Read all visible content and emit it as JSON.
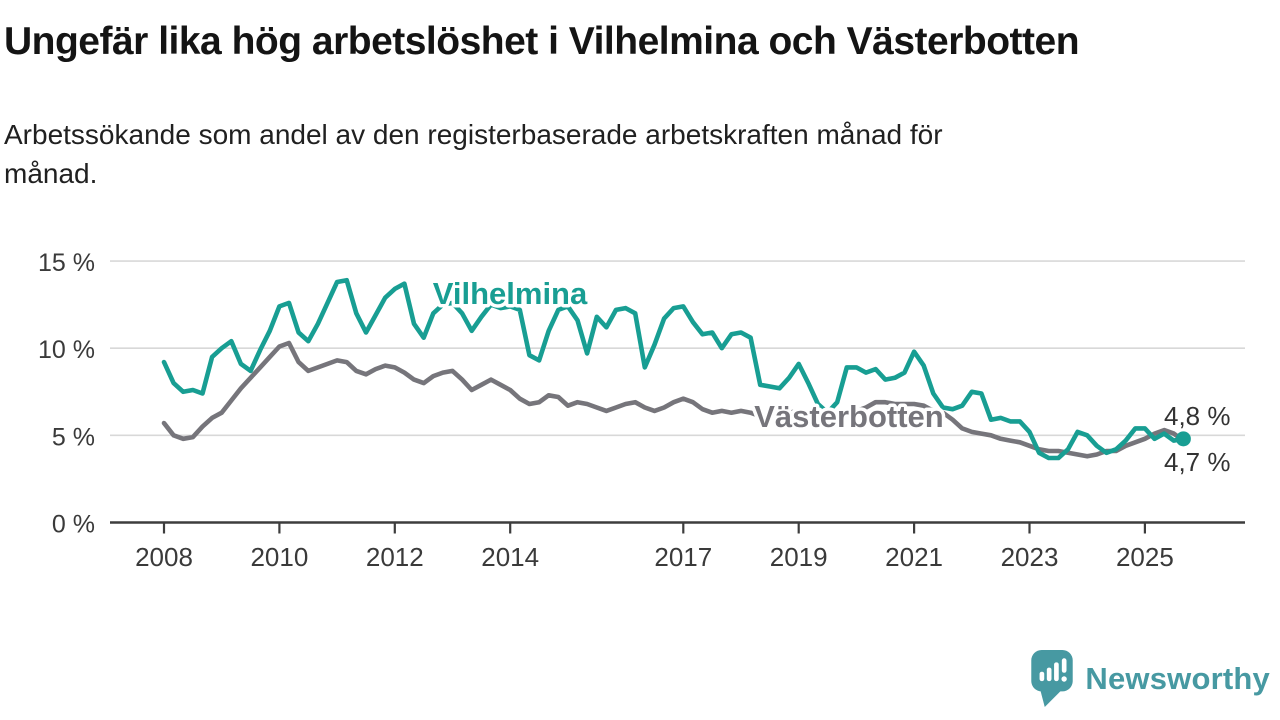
{
  "chart_data": {
    "type": "line",
    "title": "Ungefär lika hög arbetslöshet i Vilhelmina och Västerbotten",
    "subtitle_lines": [
      "Arbetssökande som andel av den registerbaserade arbetskraften månad för",
      "månad."
    ],
    "x_unit": "months (sampled every 2 months)",
    "x_start": 2008.0,
    "x_step_years": 0.1666667,
    "x_ticks": [
      2008,
      2010,
      2012,
      2014,
      2017,
      2019,
      2021,
      2023,
      2025
    ],
    "y_ticks": [
      0,
      5,
      10,
      15
    ],
    "y_tick_suffix": " %",
    "ylim": [
      0,
      16.5
    ],
    "xlim": [
      2007.1,
      2026.7
    ],
    "grid": "horizontal",
    "legend": "inline-labels",
    "axis_color": "#3d3d3d",
    "grid_color": "#d8d8d8",
    "end_label_color": "#333333",
    "series": [
      {
        "name": "Vilhelmina",
        "color": "#189e93",
        "end_label": "4,8 %",
        "end_dot": true,
        "values": [
          9.2,
          8.0,
          7.5,
          7.6,
          7.4,
          9.5,
          10.0,
          10.4,
          9.1,
          8.7,
          9.9,
          11.0,
          12.4,
          12.6,
          10.9,
          10.4,
          11.4,
          12.6,
          13.8,
          13.9,
          12.0,
          10.9,
          11.9,
          12.9,
          13.4,
          13.7,
          11.4,
          10.6,
          12.0,
          12.5,
          12.6,
          12.0,
          11.0,
          11.8,
          12.5,
          12.3,
          12.4,
          12.2,
          9.6,
          9.3,
          11.0,
          12.2,
          12.4,
          11.6,
          9.7,
          11.8,
          11.2,
          12.2,
          12.3,
          12.0,
          8.9,
          10.2,
          11.7,
          12.3,
          12.4,
          11.5,
          10.8,
          10.9,
          10.0,
          10.8,
          10.9,
          10.6,
          7.9,
          7.8,
          7.7,
          8.3,
          9.1,
          8.0,
          6.8,
          6.3,
          6.9,
          8.9,
          8.9,
          8.6,
          8.8,
          8.2,
          8.3,
          8.6,
          9.8,
          9.0,
          7.4,
          6.6,
          6.5,
          6.7,
          7.5,
          7.4,
          5.9,
          6.0,
          5.8,
          5.8,
          5.2,
          4.0,
          3.7,
          3.7,
          4.2,
          5.2,
          5.0,
          4.4,
          4.0,
          4.2,
          4.7,
          5.4,
          5.4,
          4.8,
          5.1,
          4.7,
          4.8
        ]
      },
      {
        "name": "Västerbotten",
        "color": "#76757b",
        "end_label": "4,7 %",
        "end_dot": false,
        "values": [
          5.7,
          5.0,
          4.8,
          4.9,
          5.5,
          6.0,
          6.3,
          7.0,
          7.7,
          8.3,
          8.9,
          9.5,
          10.1,
          10.3,
          9.2,
          8.7,
          8.9,
          9.1,
          9.3,
          9.2,
          8.7,
          8.5,
          8.8,
          9.0,
          8.9,
          8.6,
          8.2,
          8.0,
          8.4,
          8.6,
          8.7,
          8.2,
          7.6,
          7.9,
          8.2,
          7.9,
          7.6,
          7.1,
          6.8,
          6.9,
          7.3,
          7.2,
          6.7,
          6.9,
          6.8,
          6.6,
          6.4,
          6.6,
          6.8,
          6.9,
          6.6,
          6.4,
          6.6,
          6.9,
          7.1,
          6.9,
          6.5,
          6.3,
          6.4,
          6.3,
          6.4,
          6.3,
          6.1,
          6.0,
          6.2,
          6.3,
          6.4,
          6.3,
          6.1,
          6.0,
          6.1,
          6.3,
          6.4,
          6.6,
          6.9,
          6.9,
          6.8,
          6.8,
          6.8,
          6.7,
          6.4,
          6.3,
          5.9,
          5.4,
          5.2,
          5.1,
          5.0,
          4.8,
          4.7,
          4.6,
          4.4,
          4.2,
          4.1,
          4.1,
          4.0,
          3.9,
          3.8,
          3.9,
          4.1,
          4.1,
          4.4,
          4.6,
          4.8,
          5.1,
          5.3,
          5.1,
          4.7
        ]
      }
    ]
  },
  "footer": {
    "brand": "Newsworthy",
    "brand_color": "#4799a2",
    "logo_icon": "newsworthy-speech-bubble-chart-icon"
  }
}
